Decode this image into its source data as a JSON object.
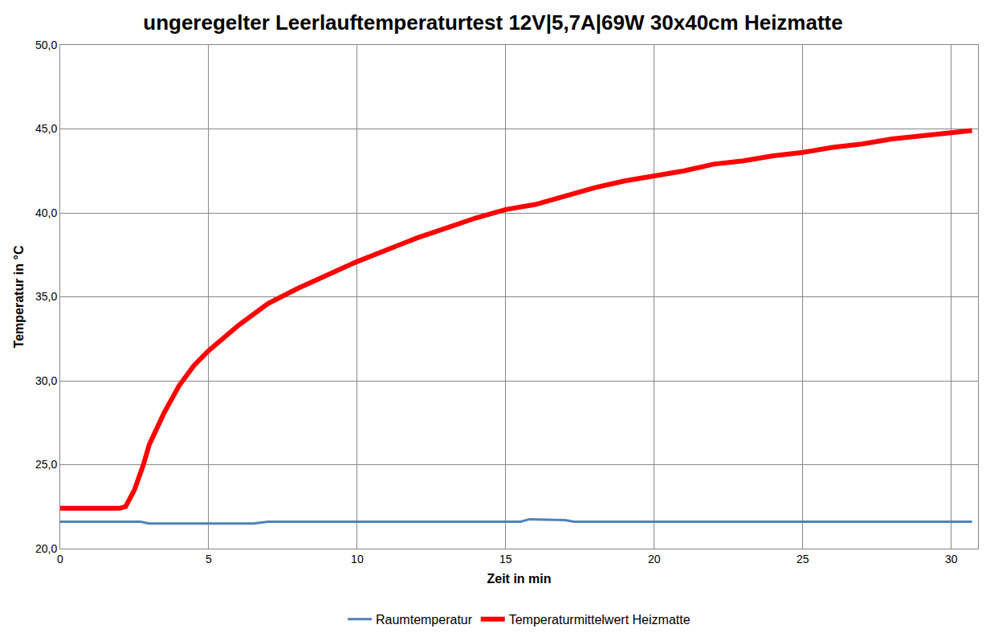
{
  "chart_data": {
    "type": "line",
    "title": "ungeregelter Leerlauftemperaturtest 12V|5,7A|69W 30x40cm Heizmatte",
    "x_label": "Zeit in min",
    "y_label": "Temperatur in °C",
    "xlim": [
      0,
      30.9
    ],
    "xticks": [
      0,
      5,
      10,
      15,
      20,
      25,
      30
    ],
    "ylim": [
      20,
      50
    ],
    "yticks": [
      {
        "value": 20,
        "label": "20,0"
      },
      {
        "value": 25,
        "label": "25,0"
      },
      {
        "value": 30,
        "label": "30,0"
      },
      {
        "value": 35,
        "label": "35,0"
      },
      {
        "value": 40,
        "label": "40,0"
      },
      {
        "value": 45,
        "label": "45,0"
      },
      {
        "value": 50,
        "label": "50,0"
      }
    ],
    "grid": true,
    "legend": "bottom",
    "series": [
      {
        "name": "Raumtemperatur",
        "color": "#4f81bd",
        "line_style": "solid",
        "x": [
          0,
          2.7,
          3.0,
          6.5,
          7.0,
          15.5,
          15.8,
          16.5,
          17.0,
          17.3,
          30.7
        ],
        "values": [
          21.6,
          21.6,
          21.5,
          21.5,
          21.6,
          21.6,
          21.75,
          21.7,
          21.7,
          21.6,
          21.6
        ]
      },
      {
        "name": "Temperaturmittelwert Heizmatte",
        "color": "#ff0000",
        "line_style": "solid",
        "x": [
          0,
          1,
          2,
          2.2,
          2.5,
          2.8,
          3,
          3.5,
          4,
          4.5,
          5,
          6,
          7,
          8,
          9,
          10,
          11,
          12,
          13,
          14,
          15,
          16,
          17,
          18,
          19,
          20,
          21,
          22,
          23,
          24,
          25,
          26,
          27,
          28,
          29,
          30,
          30.7
        ],
        "values": [
          22.4,
          22.4,
          22.4,
          22.5,
          23.5,
          25.0,
          26.2,
          28.1,
          29.7,
          30.9,
          31.8,
          33.3,
          34.6,
          35.5,
          36.3,
          37.1,
          37.8,
          38.5,
          39.1,
          39.7,
          40.2,
          40.5,
          41.0,
          41.5,
          41.9,
          42.2,
          42.5,
          42.9,
          43.1,
          43.4,
          43.6,
          43.9,
          44.1,
          44.4,
          44.6,
          44.8,
          44.9
        ]
      }
    ]
  }
}
